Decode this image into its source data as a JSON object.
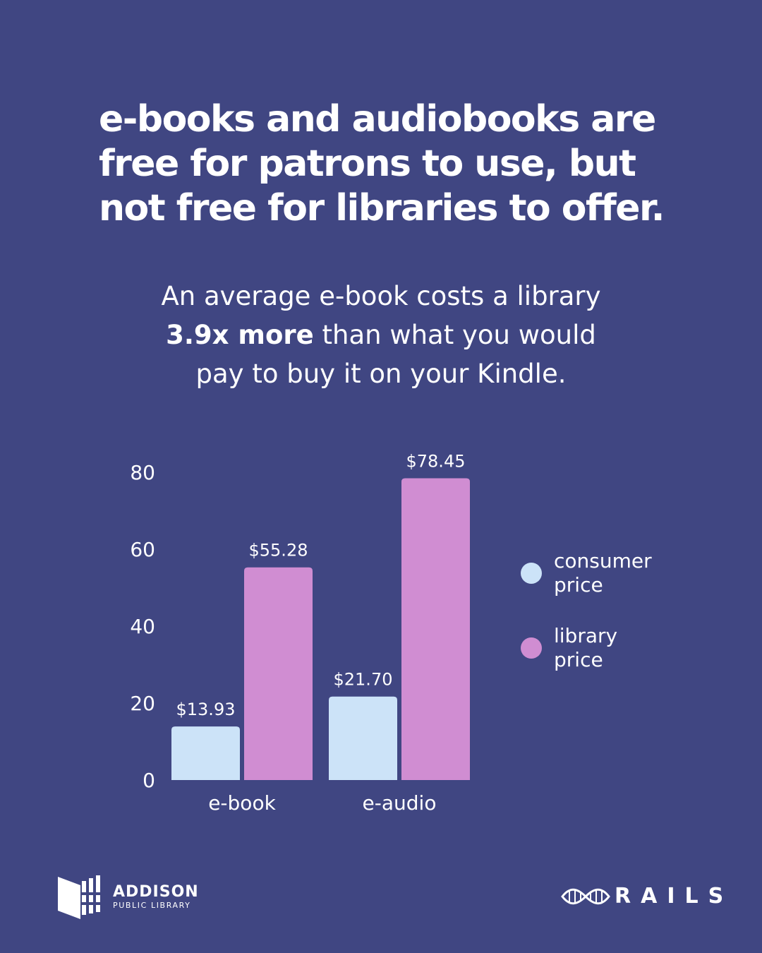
{
  "headline": {
    "line1": "e-books and audiobooks are",
    "line2": "free for patrons to use, but",
    "line3": "not free for libraries to offer."
  },
  "subhead": {
    "line1": "An average e-book costs a library",
    "line2_bold": "3.9x more",
    "line2_rest": " than what you would",
    "line3": "pay to buy it on your Kindle."
  },
  "colors": {
    "background": "#404682",
    "consumer": "#cce3f8",
    "library": "#d08dd2",
    "text": "#ffffff"
  },
  "chart_data": {
    "type": "bar",
    "categories": [
      "e-book",
      "e-audio"
    ],
    "series": [
      {
        "name": "consumer price",
        "values": [
          13.93,
          21.7
        ],
        "labels": [
          "$13.93",
          "$21.70"
        ],
        "color": "#cce3f8"
      },
      {
        "name": "library price",
        "values": [
          55.28,
          78.45
        ],
        "labels": [
          "$55.28",
          "$78.45"
        ],
        "color": "#d08dd2"
      }
    ],
    "ylim": [
      0,
      80
    ],
    "yticks": [
      0,
      20,
      40,
      60,
      80
    ],
    "grid": false,
    "legend": "right"
  },
  "logos": {
    "left": {
      "line1": "ADDISON",
      "line2": "PUBLIC LIBRARY",
      "icon": "building-stripes-icon"
    },
    "right": {
      "word": "RAILS",
      "icon": "rails-knot-icon"
    }
  }
}
